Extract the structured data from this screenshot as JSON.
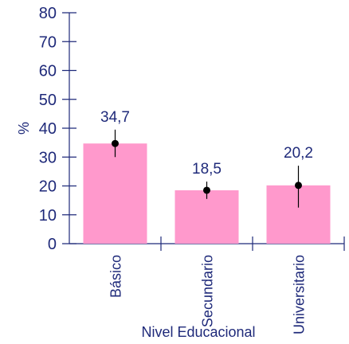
{
  "chart_data": {
    "type": "bar",
    "categories": [
      "Básico",
      "Secundario",
      "Universitario"
    ],
    "values": [
      34.7,
      18.5,
      20.2
    ],
    "value_labels": [
      "34,7",
      "18,5",
      "20,2"
    ],
    "error_bars": [
      {
        "low": 30.0,
        "high": 39.5
      },
      {
        "low": 15.5,
        "high": 21.5
      },
      {
        "low": 12.5,
        "high": 27.0
      }
    ],
    "title": "",
    "xlabel": "Nivel Educacional",
    "ylabel": "%",
    "ylim": [
      0,
      80
    ],
    "yticks": [
      0,
      10,
      20,
      30,
      40,
      50,
      60,
      70,
      80
    ],
    "grid": false,
    "colors": {
      "bar": "#ff99cc",
      "axis": "#1f2a7a",
      "errorbar": "#000000"
    }
  }
}
